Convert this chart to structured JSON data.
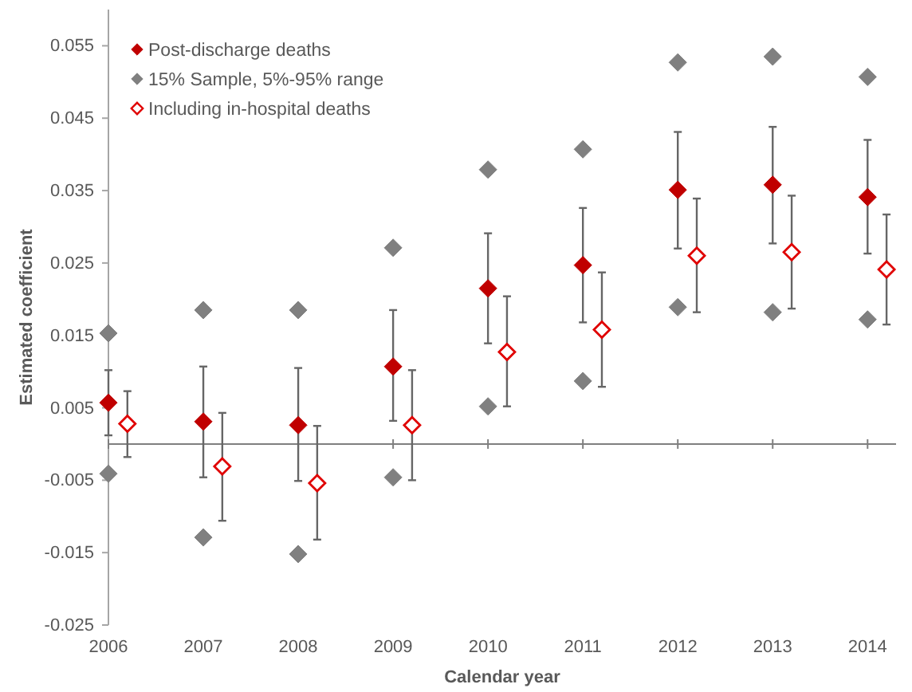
{
  "chart_data": {
    "type": "scatter",
    "xlabel": "Calendar year",
    "ylabel": "Estimated coefficient",
    "xlim": [
      2006,
      2014.3
    ],
    "xticks": [
      2006,
      2007,
      2008,
      2009,
      2010,
      2011,
      2012,
      2013,
      2014
    ],
    "ylim": [
      -0.025,
      0.06
    ],
    "yticks": [
      -0.025,
      -0.015,
      -0.005,
      0.005,
      0.015,
      0.025,
      0.035,
      0.045,
      0.055
    ],
    "legend": "top left",
    "marker": "diamond",
    "series": [
      {
        "name": "Post-discharge deaths",
        "color": "#c00000",
        "x": [
          2006,
          2007,
          2008,
          2009,
          2010,
          2011,
          2012,
          2013,
          2014
        ],
        "values": [
          0.0057,
          0.0031,
          0.0026,
          0.0107,
          0.0215,
          0.0247,
          0.0351,
          0.0358,
          0.0341
        ],
        "errors": [
          [
            0.0012,
            0.0102
          ],
          [
            -0.0046,
            0.0107
          ],
          [
            -0.0051,
            0.0105
          ],
          [
            0.0032,
            0.0185
          ],
          [
            0.0139,
            0.0291
          ],
          [
            0.0168,
            0.0326
          ],
          [
            0.027,
            0.0431
          ],
          [
            0.0277,
            0.0438
          ],
          [
            0.0263,
            0.042
          ]
        ]
      },
      {
        "name": "15% Sample, 5%-95% range",
        "color": "#808080",
        "x": [
          2006,
          2006,
          2007,
          2007,
          2008,
          2008,
          2009,
          2009,
          2010,
          2010,
          2011,
          2011,
          2012,
          2012,
          2013,
          2013,
          2014,
          2014
        ],
        "values": [
          0.0153,
          -0.0041,
          0.0185,
          -0.0129,
          0.0185,
          -0.0152,
          0.0271,
          -0.0046,
          0.0379,
          0.0052,
          0.0407,
          0.0087,
          0.0527,
          0.0189,
          0.0535,
          0.0182,
          0.0507,
          0.0172
        ]
      },
      {
        "name": "Including in-hospital deaths",
        "color": "#e00000",
        "x": [
          2006.2,
          2007.2,
          2008.2,
          2009.2,
          2010.2,
          2011.2,
          2012.2,
          2013.2,
          2014.2
        ],
        "values": [
          0.0028,
          -0.0031,
          -0.0054,
          0.0026,
          0.0127,
          0.0158,
          0.026,
          0.0265,
          0.0241
        ],
        "errors": [
          [
            -0.0018,
            0.0073
          ],
          [
            -0.0106,
            0.0043
          ],
          [
            -0.0132,
            0.0025
          ],
          [
            -0.005,
            0.0102
          ],
          [
            0.0052,
            0.0204
          ],
          [
            0.0079,
            0.0237
          ],
          [
            0.0182,
            0.0339
          ],
          [
            0.0187,
            0.0343
          ],
          [
            0.0165,
            0.0317
          ]
        ]
      }
    ]
  }
}
